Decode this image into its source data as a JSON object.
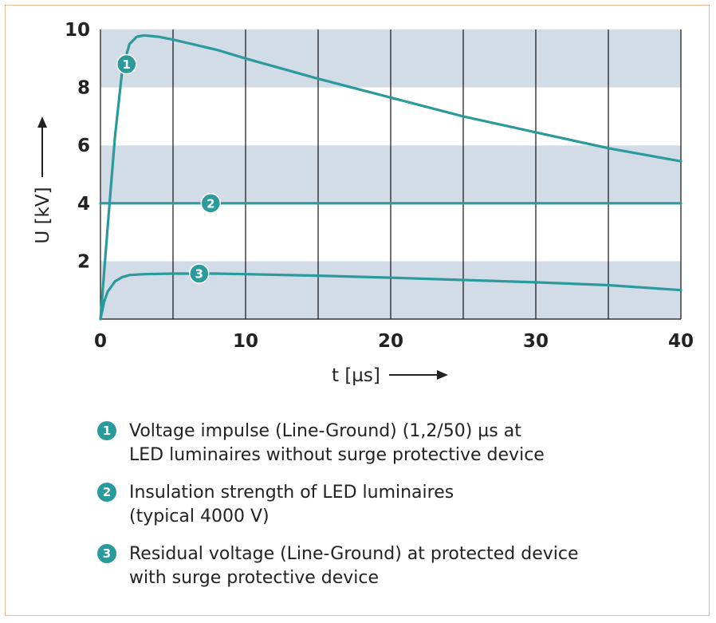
{
  "chart_data": {
    "type": "line",
    "xlabel": "t [µs]",
    "ylabel": "U [kV]",
    "xlim": [
      0,
      40
    ],
    "ylim": [
      0,
      10
    ],
    "x_ticks": [
      "0",
      "10",
      "20",
      "30",
      "40"
    ],
    "y_ticks": [
      "2",
      "4",
      "6",
      "8",
      "10"
    ],
    "grid": "vertical lines every 5 µs, horizontal bands every 2 kV",
    "series": [
      {
        "marker": "1",
        "x": [
          0,
          0.5,
          1,
          1.5,
          2,
          2.5,
          3,
          4,
          5,
          8,
          10,
          15,
          20,
          25,
          30,
          35,
          40
        ],
        "values": [
          0,
          3.2,
          6.3,
          8.6,
          9.5,
          9.75,
          9.8,
          9.75,
          9.65,
          9.3,
          9.0,
          8.3,
          7.65,
          7.0,
          6.45,
          5.9,
          5.45
        ]
      },
      {
        "marker": "2",
        "x": [
          0,
          40
        ],
        "values": [
          4.0,
          4.0
        ]
      },
      {
        "marker": "3",
        "x": [
          0,
          0.25,
          0.5,
          1,
          1.5,
          2,
          3,
          5,
          8,
          10,
          15,
          20,
          25,
          30,
          35,
          40
        ],
        "values": [
          0,
          0.6,
          0.95,
          1.3,
          1.45,
          1.52,
          1.55,
          1.57,
          1.57,
          1.55,
          1.5,
          1.43,
          1.35,
          1.27,
          1.17,
          1.0
        ]
      }
    ]
  },
  "legend": [
    {
      "marker": "1",
      "line1": "Voltage impulse (Line-Ground) (1,2/50) µs at",
      "line2": "LED luminaires without surge protective device"
    },
    {
      "marker": "2",
      "line1": "Insulation strength of LED luminaires",
      "line2": "(typical 4000 V)"
    },
    {
      "marker": "3",
      "line1": "Residual voltage (Line-Ground) at protected device",
      "line2": "with surge protective device"
    }
  ],
  "colors": {
    "line": "#2a9a9c",
    "band": "#d2dce7",
    "gridline": "#111111",
    "frame": "#e8b48e"
  },
  "icons": {
    "y_arrow": "arrow-up-icon",
    "x_arrow": "arrow-right-icon"
  }
}
